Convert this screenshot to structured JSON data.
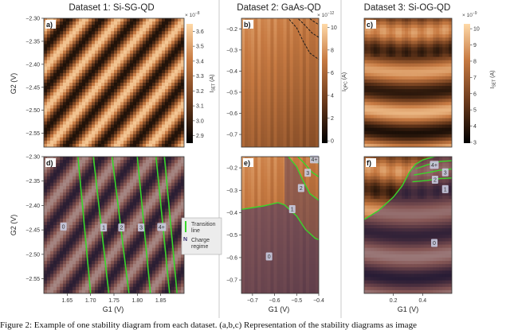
{
  "figure_caption": "Figure 2: Example of one stability diagram from each dataset. (a,b,c) Representation of the stability diagrams as image",
  "colors": {
    "cmap_dark": "#000000",
    "cmap_mid": "#c77a42",
    "cmap_light": "#ffd9a8",
    "transition_line": "#39d62a",
    "regime_overlay": "#3a2f6e",
    "divider": "#bbbbbb"
  },
  "legend": {
    "transition_label_1": "Transition",
    "transition_label_2": "line",
    "regime_symbol": "N",
    "regime_label_1": "Charge",
    "regime_label_2": "regime"
  },
  "chart_data": [
    {
      "id": "a",
      "panel_label": "a)",
      "type": "heatmap",
      "title": "Dataset 1: Si-SG-QD",
      "xlim": [
        1.6,
        1.9
      ],
      "ylim": [
        -2.58,
        -2.3
      ],
      "y_ticks": [
        -2.3,
        -2.35,
        -2.4,
        -2.45,
        -2.5,
        -2.55
      ],
      "y_tick_labels": [
        "−2.30",
        "−2.35",
        "−2.40",
        "−2.45",
        "−2.50",
        "−2.55"
      ],
      "ylabel": "G2 (V)",
      "colorbar": {
        "label": "I_SET (A)",
        "exponent": "× 10",
        "exponent_power": "−8",
        "range": [
          2.85,
          3.65
        ],
        "ticks": [
          2.9,
          3.0,
          3.1,
          3.2,
          3.3,
          3.4,
          3.5,
          3.6
        ],
        "tick_labels": [
          "2.9",
          "3.0",
          "3.1",
          "3.2",
          "3.3",
          "3.4",
          "3.5",
          "3.6"
        ]
      }
    },
    {
      "id": "b",
      "panel_label": "b)",
      "type": "heatmap",
      "title": "Dataset 2: GaAs-QD",
      "xlim": [
        -0.75,
        -0.4
      ],
      "ylim": [
        -0.76,
        -0.15
      ],
      "y_ticks": [
        -0.2,
        -0.3,
        -0.4,
        -0.5,
        -0.6,
        -0.7
      ],
      "y_tick_labels": [
        "−0.2",
        "−0.3",
        "−0.4",
        "−0.5",
        "−0.6",
        "−0.7"
      ],
      "colorbar": {
        "label": "I_QPC (A)",
        "exponent": "× 10",
        "exponent_power": "−12",
        "range": [
          -0.2,
          10.3
        ],
        "ticks": [
          0,
          2,
          4,
          6,
          8,
          10
        ],
        "tick_labels": [
          "0",
          "2",
          "4",
          "6",
          "8",
          "10"
        ]
      }
    },
    {
      "id": "c",
      "panel_label": "c)",
      "type": "heatmap",
      "title": "Dataset 3: Si-OG-QD",
      "xlim": [
        0.0,
        0.6
      ],
      "ylim": [
        -0.76,
        -0.15
      ],
      "colorbar": {
        "label": "I_SET (A)",
        "exponent": "× 10",
        "exponent_power": "−9",
        "range": [
          2.95,
          10.3
        ],
        "ticks": [
          3,
          4,
          5,
          6,
          7,
          8,
          9,
          10
        ],
        "tick_labels": [
          "3",
          "4",
          "5",
          "6",
          "7",
          "8",
          "9",
          "10"
        ]
      }
    },
    {
      "id": "d",
      "panel_label": "d)",
      "type": "heatmap",
      "xlim": [
        1.6,
        1.9
      ],
      "ylim": [
        -2.58,
        -2.3
      ],
      "x_ticks": [
        1.65,
        1.7,
        1.75,
        1.8,
        1.85
      ],
      "x_tick_labels": [
        "1.65",
        "1.70",
        "1.75",
        "1.80",
        "1.85"
      ],
      "y_ticks": [
        -2.3,
        -2.35,
        -2.4,
        -2.45,
        -2.5,
        -2.55
      ],
      "y_tick_labels": [
        "−2.30",
        "−2.35",
        "−2.40",
        "−2.45",
        "−2.50",
        "−2.55"
      ],
      "xlabel": "G1 (V)",
      "ylabel": "G2 (V)",
      "transition_lines": [
        {
          "top_x": 1.673,
          "bottom_x": 1.7
        },
        {
          "top_x": 1.706,
          "bottom_x": 1.739
        },
        {
          "top_x": 1.746,
          "bottom_x": 1.782
        },
        {
          "top_x": 1.8,
          "bottom_x": 1.828
        },
        {
          "top_x": 1.84,
          "bottom_x": 1.869
        },
        {
          "top_x": 1.858,
          "bottom_x": 1.885
        }
      ],
      "regimes": [
        {
          "label": "0",
          "x": 1.642,
          "y": -2.443
        },
        {
          "label": "1",
          "x": 1.728,
          "y": -2.445
        },
        {
          "label": "2",
          "x": 1.766,
          "y": -2.445
        },
        {
          "label": "3",
          "x": 1.808,
          "y": -2.445
        },
        {
          "label": "4+",
          "x": 1.852,
          "y": -2.444
        }
      ]
    },
    {
      "id": "e",
      "panel_label": "e)",
      "type": "heatmap",
      "xlim": [
        -0.75,
        -0.4
      ],
      "ylim": [
        -0.76,
        -0.15
      ],
      "x_ticks": [
        -0.7,
        -0.6,
        -0.5,
        -0.4
      ],
      "x_tick_labels": [
        "−0.7",
        "−0.6",
        "−0.5",
        "−0.4"
      ],
      "y_ticks": [
        -0.2,
        -0.3,
        -0.4,
        -0.5,
        -0.6,
        -0.7
      ],
      "y_tick_labels": [
        "−0.2",
        "−0.3",
        "−0.4",
        "−0.5",
        "−0.6",
        "−0.7"
      ],
      "xlabel": "G1 (V)",
      "transition_lines": [
        [
          [
            -0.75,
            -0.385
          ],
          [
            -0.65,
            -0.37
          ],
          [
            -0.585,
            -0.355
          ],
          [
            -0.555,
            -0.365
          ],
          [
            -0.5,
            -0.415
          ],
          [
            -0.46,
            -0.475
          ],
          [
            -0.415,
            -0.515
          ],
          [
            -0.4,
            -0.52
          ]
        ],
        [
          [
            -0.555,
            -0.13
          ],
          [
            -0.5,
            -0.195
          ],
          [
            -0.47,
            -0.26
          ],
          [
            -0.44,
            -0.315
          ],
          [
            -0.4,
            -0.345
          ]
        ],
        [
          [
            -0.515,
            -0.13
          ],
          [
            -0.47,
            -0.175
          ],
          [
            -0.43,
            -0.22
          ],
          [
            -0.4,
            -0.24
          ]
        ],
        [
          [
            -0.465,
            -0.13
          ],
          [
            -0.43,
            -0.16
          ],
          [
            -0.4,
            -0.18
          ]
        ]
      ],
      "regimes": [
        {
          "label": "0",
          "x": -0.625,
          "y": -0.595
        },
        {
          "label": "1",
          "x": -0.52,
          "y": -0.384
        },
        {
          "label": "2",
          "x": -0.48,
          "y": -0.29
        },
        {
          "label": "3",
          "x": -0.45,
          "y": -0.222
        },
        {
          "label": "4+",
          "x": -0.42,
          "y": -0.162
        }
      ]
    },
    {
      "id": "f",
      "panel_label": "f)",
      "type": "heatmap",
      "xlim": [
        0.0,
        0.6
      ],
      "ylim": [
        -0.76,
        -0.15
      ],
      "x_ticks": [
        0.2,
        0.4
      ],
      "x_tick_labels": [
        "0.2",
        "0.4"
      ],
      "xlabel": "G1 (V)",
      "transition_lines": [
        [
          [
            0.0,
            -0.43
          ],
          [
            0.1,
            -0.39
          ],
          [
            0.2,
            -0.33
          ],
          [
            0.26,
            -0.28
          ],
          [
            0.31,
            -0.22
          ],
          [
            0.35,
            -0.185
          ],
          [
            0.4,
            -0.165
          ],
          [
            0.48,
            -0.15
          ],
          [
            0.55,
            -0.14
          ],
          [
            0.6,
            -0.135
          ]
        ],
        [
          [
            0.35,
            -0.205
          ],
          [
            0.43,
            -0.187
          ],
          [
            0.52,
            -0.172
          ],
          [
            0.6,
            -0.168
          ]
        ],
        [
          [
            0.34,
            -0.232
          ],
          [
            0.43,
            -0.222
          ],
          [
            0.52,
            -0.21
          ],
          [
            0.6,
            -0.205
          ]
        ],
        [
          [
            0.33,
            -0.262
          ],
          [
            0.43,
            -0.256
          ],
          [
            0.52,
            -0.248
          ],
          [
            0.6,
            -0.245
          ]
        ]
      ],
      "regimes": [
        {
          "label": "0",
          "x": 0.48,
          "y": -0.535
        },
        {
          "label": "1",
          "x": 0.555,
          "y": -0.295
        },
        {
          "label": "2",
          "x": 0.485,
          "y": -0.253
        },
        {
          "label": "3",
          "x": 0.555,
          "y": -0.22
        },
        {
          "label": "4+",
          "x": 0.48,
          "y": -0.187
        }
      ]
    }
  ]
}
